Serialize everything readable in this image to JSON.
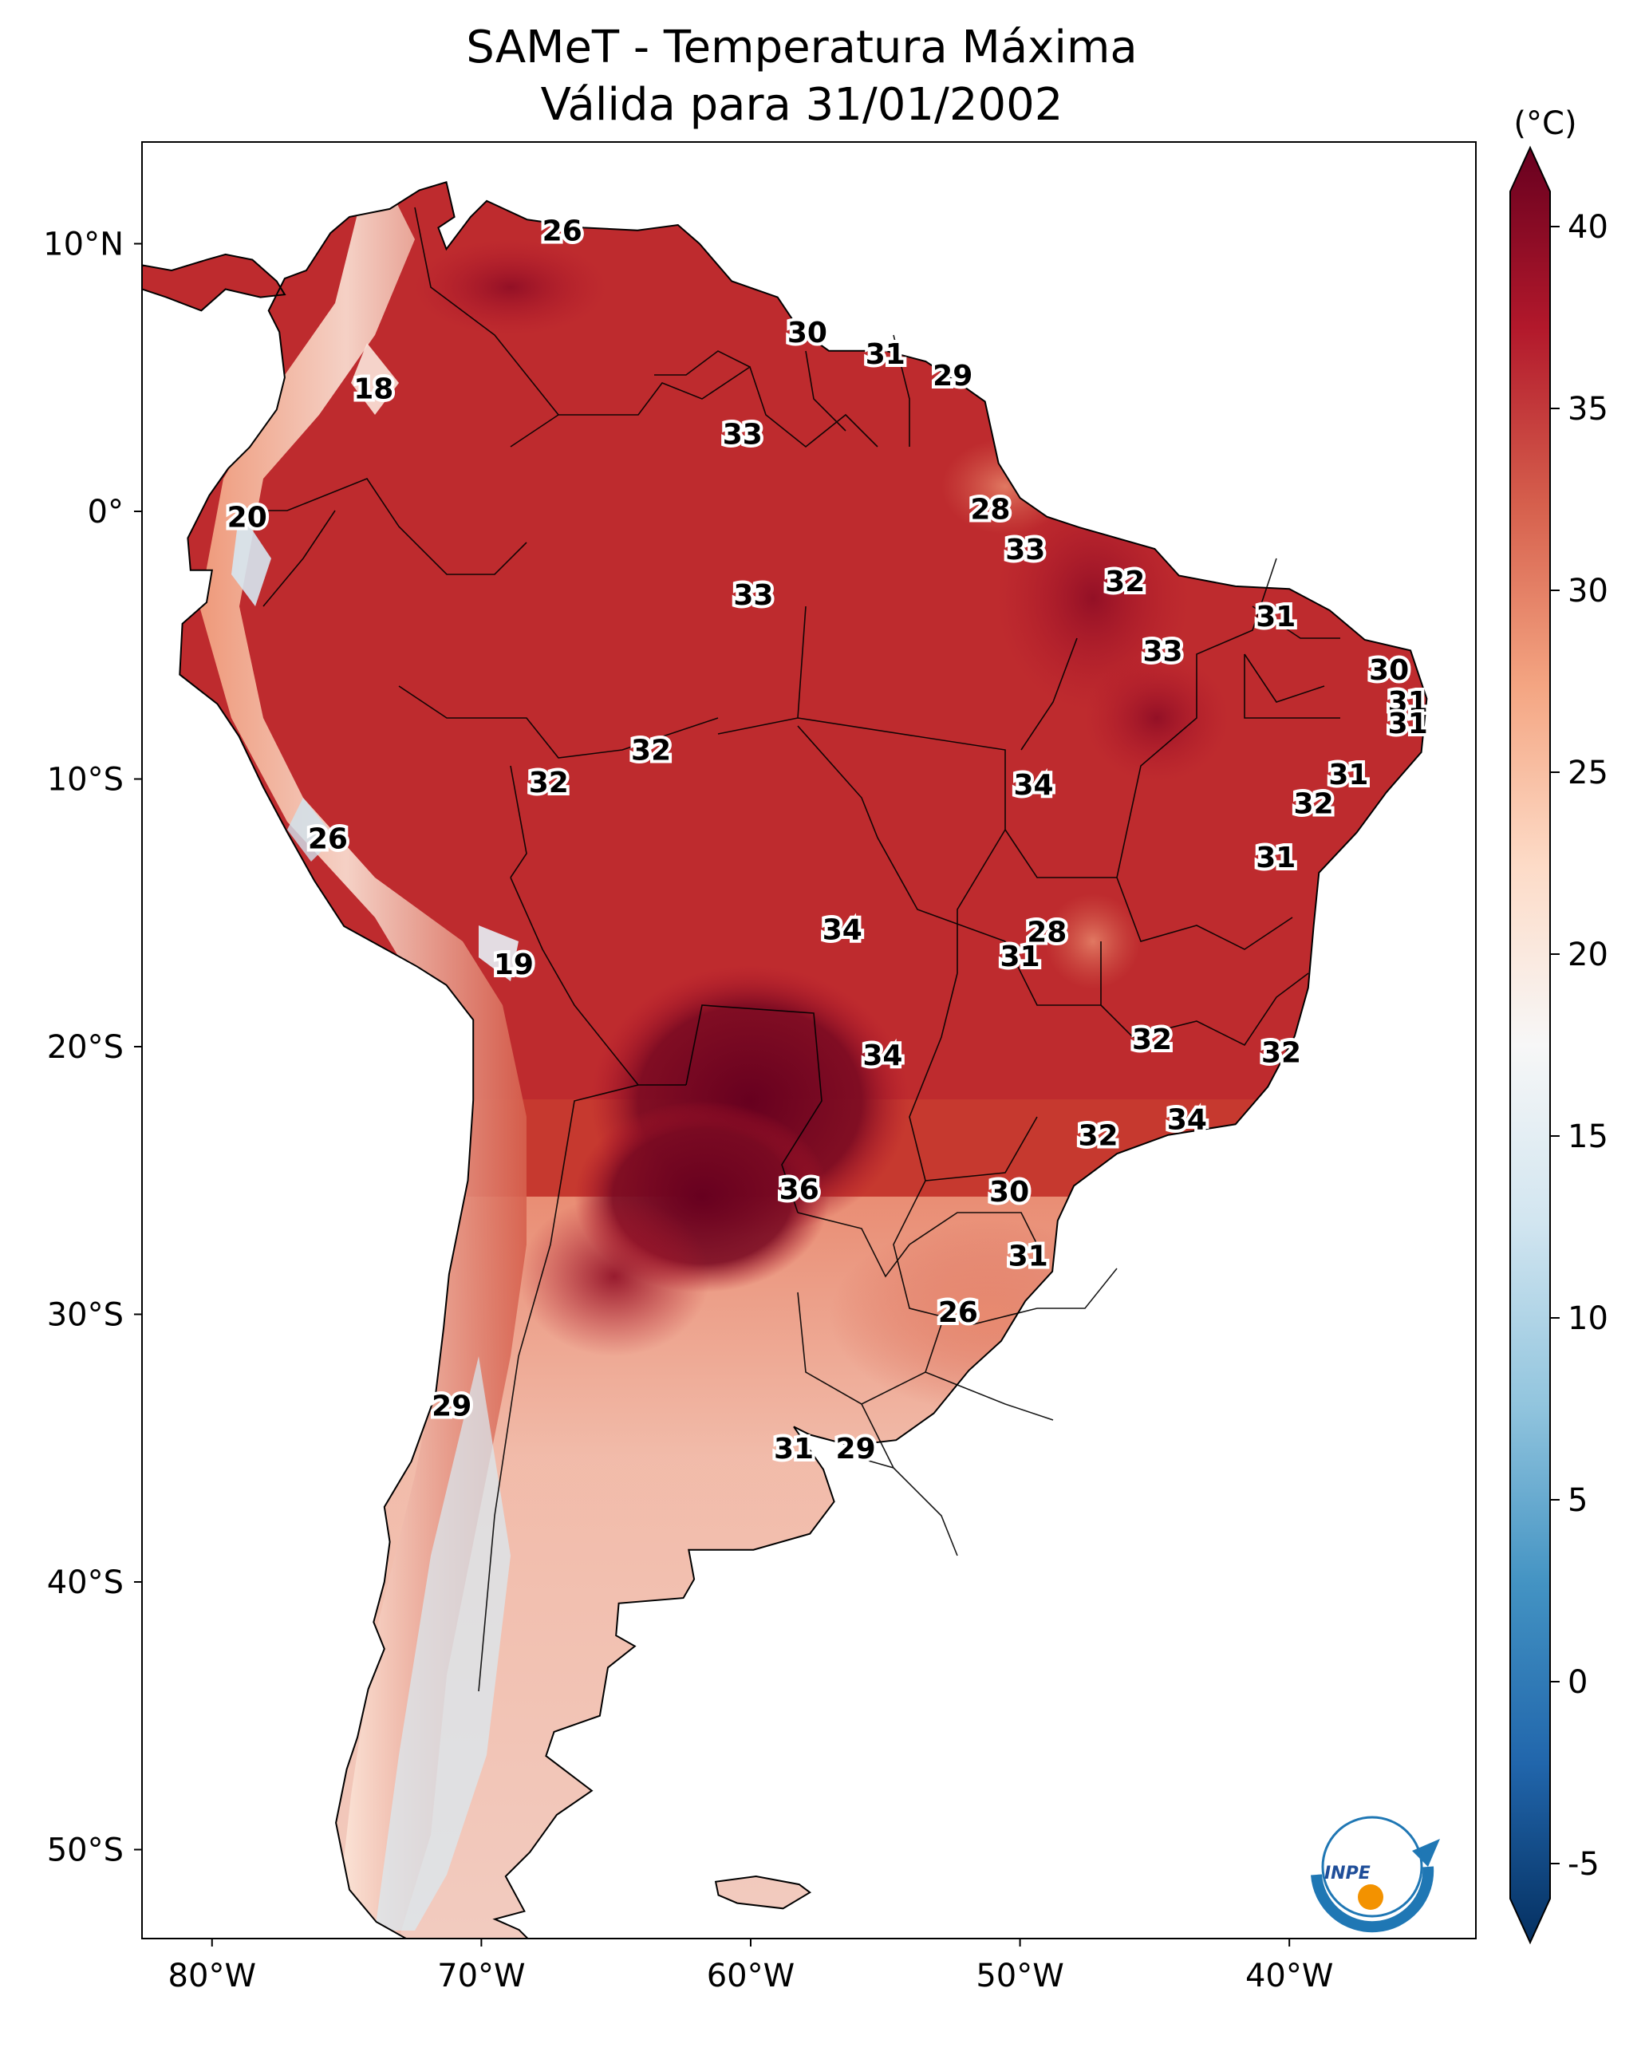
{
  "title": {
    "line1": "SAMeT - Temperatura Máxima",
    "line2": "Válida para 31/01/2002"
  },
  "colorbar": {
    "unit": "(°C)",
    "min": -5,
    "max": 40,
    "ticks": [
      "40",
      "35",
      "30",
      "25",
      "20",
      "15",
      "10",
      "5",
      "0",
      "-5"
    ],
    "colors": [
      "#67001f",
      "#b2182b",
      "#d6604d",
      "#f4a582",
      "#fddbc7",
      "#f7f7f7",
      "#d1e5f0",
      "#92c5de",
      "#4393c3",
      "#2166ac",
      "#053061"
    ]
  },
  "axes": {
    "lat_labels": [
      "10°N",
      "0°",
      "10°S",
      "20°S",
      "30°S",
      "40°S",
      "50°S"
    ],
    "lon_labels": [
      "80°W",
      "70°W",
      "60°W",
      "50°W",
      "40°W"
    ]
  },
  "contour_labels": [
    {
      "text": "26",
      "lon": -67,
      "lat": 10.5
    },
    {
      "text": "18",
      "lon": -74,
      "lat": 4.6
    },
    {
      "text": "30",
      "lon": -57.9,
      "lat": 6.7
    },
    {
      "text": "31",
      "lon": -55,
      "lat": 5.9
    },
    {
      "text": "29",
      "lon": -52.5,
      "lat": 5.1
    },
    {
      "text": "33",
      "lon": -60.3,
      "lat": 2.9
    },
    {
      "text": "20",
      "lon": -78.7,
      "lat": -0.2
    },
    {
      "text": "28",
      "lon": -51.1,
      "lat": 0.1
    },
    {
      "text": "33",
      "lon": -49.8,
      "lat": -1.4
    },
    {
      "text": "33",
      "lon": -59.9,
      "lat": -3.1
    },
    {
      "text": "32",
      "lon": -46.1,
      "lat": -2.6
    },
    {
      "text": "31",
      "lon": -40.5,
      "lat": -3.9
    },
    {
      "text": "33",
      "lon": -44.7,
      "lat": -5.2
    },
    {
      "text": "30",
      "lon": -36.3,
      "lat": -5.9
    },
    {
      "text": "31",
      "lon": -35.6,
      "lat": -7.1
    },
    {
      "text": "31",
      "lon": -35.6,
      "lat": -7.9
    },
    {
      "text": "32",
      "lon": -63.7,
      "lat": -8.9
    },
    {
      "text": "32",
      "lon": -67.5,
      "lat": -10.1
    },
    {
      "text": "31",
      "lon": -37.8,
      "lat": -9.8
    },
    {
      "text": "34",
      "lon": -49.5,
      "lat": -10.2
    },
    {
      "text": "32",
      "lon": -39.1,
      "lat": -10.9
    },
    {
      "text": "26",
      "lon": -75.7,
      "lat": -12.2
    },
    {
      "text": "31",
      "lon": -40.5,
      "lat": -12.9
    },
    {
      "text": "34",
      "lon": -56.6,
      "lat": -15.6
    },
    {
      "text": "28",
      "lon": -49,
      "lat": -15.7
    },
    {
      "text": "31",
      "lon": -50,
      "lat": -16.6
    },
    {
      "text": "19",
      "lon": -68.8,
      "lat": -16.9
    },
    {
      "text": "32",
      "lon": -45.1,
      "lat": -19.7
    },
    {
      "text": "32",
      "lon": -40.3,
      "lat": -20.2
    },
    {
      "text": "34",
      "lon": -55.1,
      "lat": -20.3
    },
    {
      "text": "34",
      "lon": -43.8,
      "lat": -22.7
    },
    {
      "text": "32",
      "lon": -47.1,
      "lat": -23.3
    },
    {
      "text": "36",
      "lon": -58.2,
      "lat": -25.3
    },
    {
      "text": "30",
      "lon": -50.4,
      "lat": -25.4
    },
    {
      "text": "31",
      "lon": -49.7,
      "lat": -27.8
    },
    {
      "text": "26",
      "lon": -52.3,
      "lat": -29.9
    },
    {
      "text": "29",
      "lon": -71.1,
      "lat": -33.4
    },
    {
      "text": "31",
      "lon": -58.4,
      "lat": -35
    },
    {
      "text": "29",
      "lon": -56.1,
      "lat": -35
    }
  ],
  "logo": {
    "text": "INPE"
  }
}
